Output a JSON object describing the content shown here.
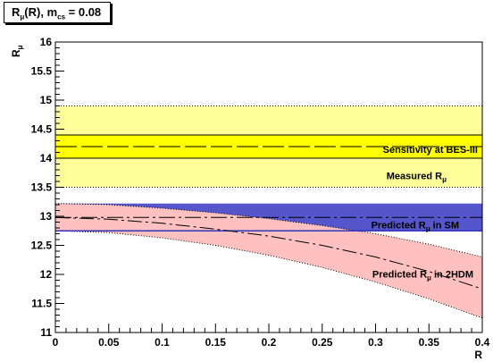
{
  "chart_data": {
    "type": "line",
    "title": "R_μ(R), m_cs = 0.08",
    "title_parts": {
      "main": "R",
      "sub1": "μ",
      "mid": "(R), m",
      "sub2": "cs",
      "tail": " = 0.08"
    },
    "xlabel": "R",
    "ylabel": "R_μ",
    "ylabel_parts": {
      "main": "R",
      "sub": "μ"
    },
    "xlim": [
      0,
      0.4
    ],
    "ylim": [
      11,
      16
    ],
    "xticks": [
      "0",
      "0.05",
      "0.1",
      "0.15",
      "0.2",
      "0.25",
      "0.3",
      "0.35",
      "0.4"
    ],
    "yticks": [
      "11",
      "11.5",
      "12",
      "12.5",
      "13",
      "13.5",
      "14",
      "14.5",
      "15",
      "15.5",
      "16"
    ],
    "grid": false,
    "bands": [
      {
        "name": "Measured R_μ",
        "label_main": "Measured R",
        "label_sub": "μ",
        "y_low": 13.5,
        "y_high": 14.9,
        "center": 14.2,
        "color": "#ffff99"
      },
      {
        "name": "Sensitivity at BES-III",
        "label_main": "Sensitivity at BES-III",
        "label_sub": "",
        "y_low": 14.0,
        "y_high": 14.4,
        "center": 14.2,
        "color": "#ffff00"
      },
      {
        "name": "Predicted R_μ in SM",
        "label_main": "Predicted R",
        "label_sub": "μ",
        "label_tail": " in SM",
        "y_low": 12.75,
        "y_high": 13.22,
        "center": 12.98,
        "color": "#5555cc"
      }
    ],
    "series": [
      {
        "name": "Predicted R_μ in 2HDM",
        "label_main": "Predicted R",
        "label_sub": "μ",
        "label_tail": " in 2HDM",
        "x": [
          0,
          0.05,
          0.1,
          0.15,
          0.2,
          0.25,
          0.3,
          0.35,
          0.4
        ],
        "center": [
          12.98,
          12.95,
          12.88,
          12.78,
          12.66,
          12.5,
          12.3,
          12.05,
          11.75
        ],
        "lower": [
          12.75,
          12.72,
          12.63,
          12.5,
          12.33,
          12.12,
          11.87,
          11.58,
          11.25
        ],
        "upper": [
          13.22,
          13.2,
          13.14,
          13.06,
          12.96,
          12.84,
          12.7,
          12.52,
          12.3
        ],
        "color": "#ffc0c0"
      }
    ]
  }
}
